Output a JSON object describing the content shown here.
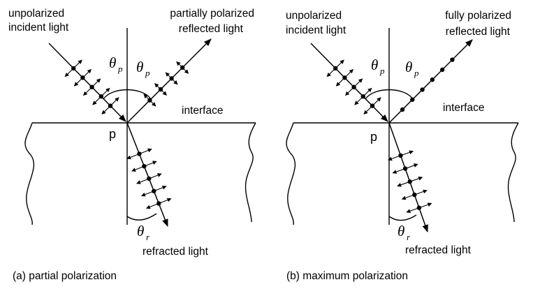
{
  "panels": [
    {
      "incident_label": [
        "unpolarized",
        "incident light"
      ],
      "reflected_label": [
        "partially polarized",
        "reflected light"
      ],
      "interface_label": "interface",
      "point_label": "p",
      "theta_p": "θ",
      "theta_p_sub": "p",
      "theta_r": "θ",
      "theta_r_sub": "r",
      "refracted_label": "refracted light",
      "caption": "(a) partial polarization"
    },
    {
      "incident_label": [
        "unpolarized",
        "incident light"
      ],
      "reflected_label": [
        "fully polarized",
        "reflected light"
      ],
      "interface_label": "interface",
      "point_label": "p",
      "theta_p": "θ",
      "theta_p_sub": "p",
      "theta_r": "θ",
      "theta_r_sub": "r",
      "refracted_label": "refracted light",
      "caption": "(b) maximum polarization"
    }
  ],
  "icons": {
    "arrowhead": "arrowhead-icon",
    "polarization_dot": "dot-icon",
    "double_arrow": "double-arrow-icon"
  }
}
